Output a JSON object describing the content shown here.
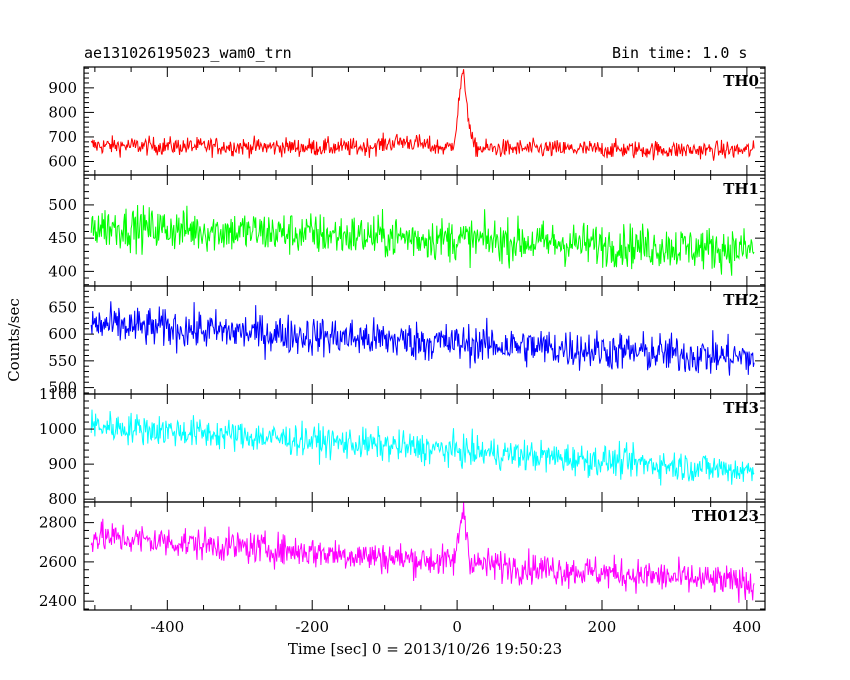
{
  "header": {
    "title": "ae131026195023_wam0_trn",
    "bin_time": "Bin time: 1.0 s"
  },
  "chart_data": {
    "type": "line",
    "xlabel": "Time [sec] 0 = 2013/10/26 19:50:23",
    "ylabel": "Counts/sec",
    "xlim": [
      -515,
      425
    ],
    "x_ticks": [
      "-400",
      "-200",
      "0",
      "200",
      "400"
    ],
    "x_tick_values": [
      -400,
      -200,
      0,
      200,
      400
    ],
    "x_range": [
      -505,
      410
    ],
    "grid": false,
    "panels": [
      {
        "name": "TH0",
        "color": "#ff0000",
        "ylim": [
          545,
          985
        ],
        "y_ticks": [
          600,
          700,
          800,
          900
        ],
        "y_tick_labels": [
          "600",
          "700",
          "800",
          "900"
        ],
        "baseline_start": 665,
        "baseline_end": 645,
        "noise_amplitude": 48,
        "peaks": [
          {
            "t": 8,
            "height": 290,
            "width": 6
          }
        ],
        "bump": {
          "t": -75,
          "height": 25,
          "width": 25
        }
      },
      {
        "name": "TH1",
        "color": "#00ff00",
        "ylim": [
          378,
          545
        ],
        "y_ticks": [
          400,
          450,
          500
        ],
        "y_tick_labels": [
          "400",
          "450",
          "500"
        ],
        "baseline_start": 468,
        "baseline_end": 432,
        "noise_amplitude": 42
      },
      {
        "name": "TH2",
        "color": "#0000ff",
        "ylim": [
          488,
          690
        ],
        "y_ticks": [
          500,
          550,
          600,
          650
        ],
        "y_tick_labels": [
          "500",
          "550",
          "600",
          "650"
        ],
        "baseline_start": 618,
        "baseline_end": 555,
        "noise_amplitude": 48
      },
      {
        "name": "TH3",
        "color": "#00ffff",
        "ylim": [
          792,
          1100
        ],
        "y_ticks": [
          800,
          900,
          1000,
          1100
        ],
        "y_tick_labels": [
          "800",
          "900",
          "1000",
          "1100"
        ],
        "baseline_start": 1010,
        "baseline_end": 880,
        "noise_amplitude": 58
      },
      {
        "name": "TH0123",
        "color": "#ff00ff",
        "ylim": [
          2355,
          2905
        ],
        "y_ticks": [
          2400,
          2600,
          2800
        ],
        "y_tick_labels": [
          "2400",
          "2600",
          "2800"
        ],
        "baseline_start": 2730,
        "baseline_end": 2490,
        "noise_amplitude": 105,
        "peaks": [
          {
            "t": 8,
            "height": 260,
            "width": 5
          }
        ]
      }
    ]
  }
}
